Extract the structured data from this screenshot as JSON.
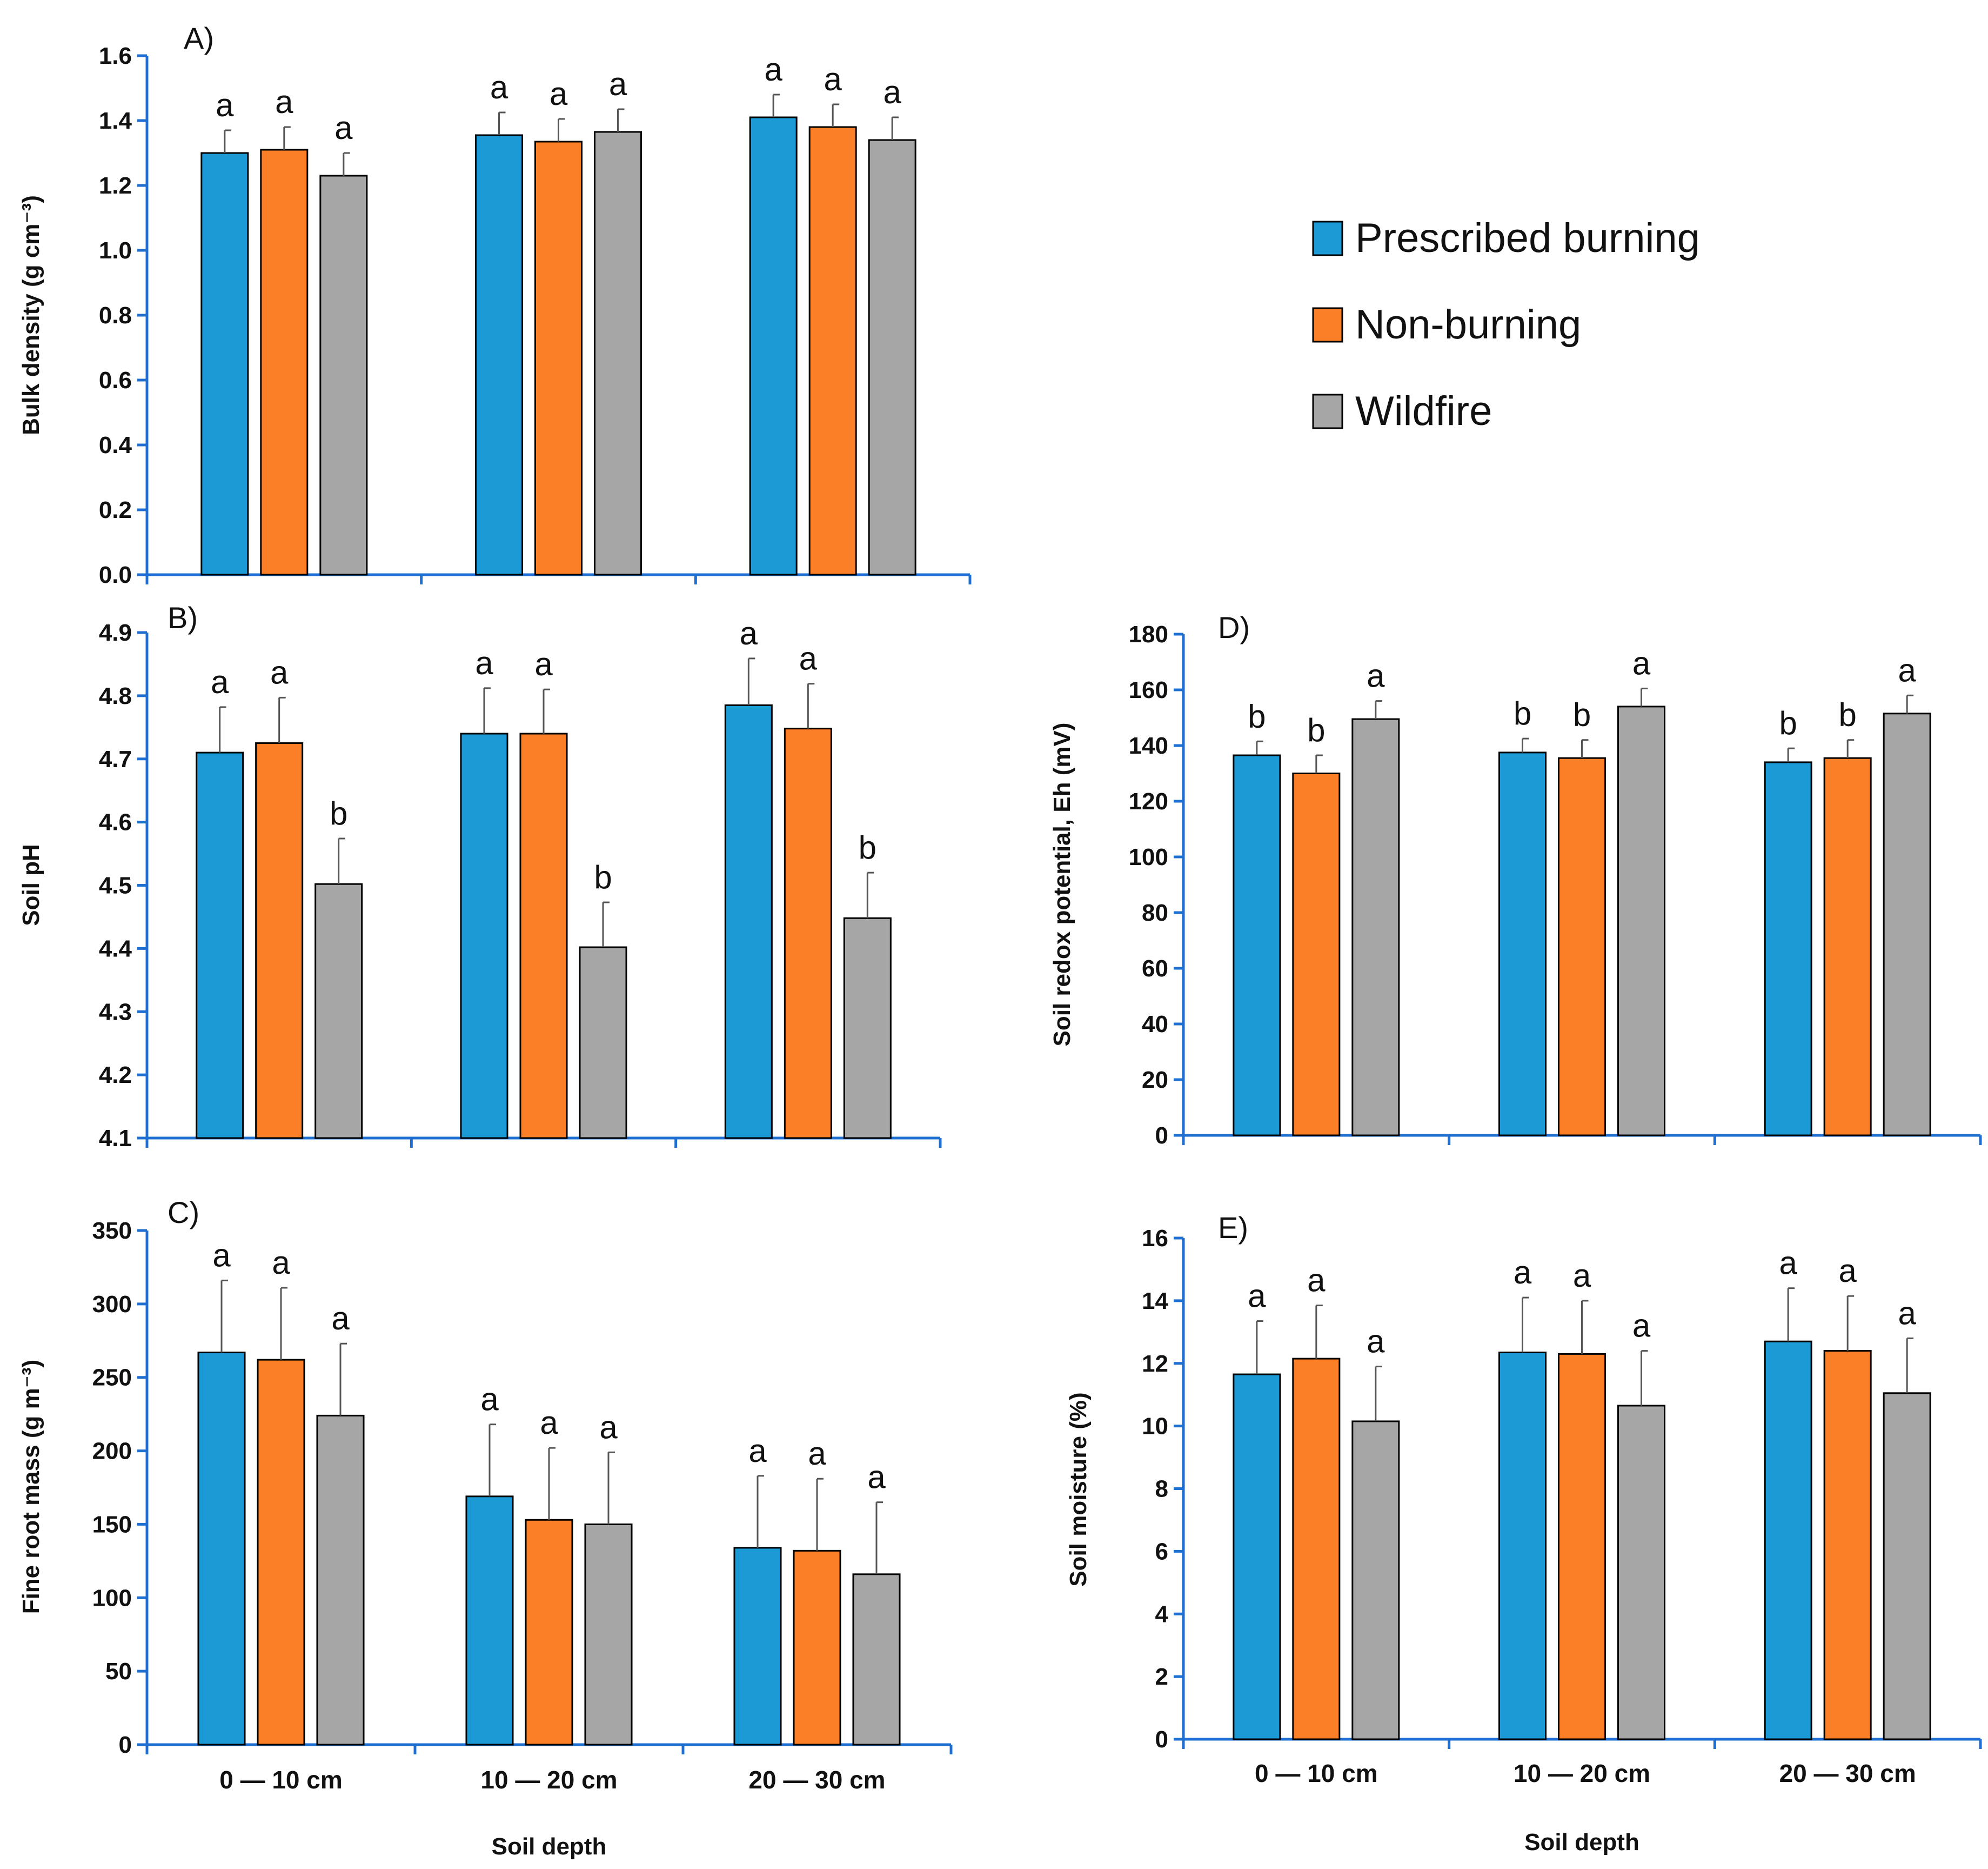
{
  "legend": {
    "items": [
      {
        "label": "Prescribed burning",
        "color": "#1b9ad6"
      },
      {
        "label": "Non-burning",
        "color": "#fb7f26"
      },
      {
        "label": "Wildfire",
        "color": "#a6a6a6"
      }
    ]
  },
  "chart_data": [
    {
      "id": "A",
      "title": "A)",
      "type": "bar",
      "ylabel": "Bulk density (g cm⁻³)",
      "xlabel": "",
      "categories": [
        "0 — 10 cm",
        "10 — 20 cm",
        "20 — 30 cm"
      ],
      "show_category_labels": false,
      "ylim": [
        0,
        1.6
      ],
      "yticks": [
        "0.0",
        "0.2",
        "0.4",
        "0.6",
        "0.8",
        "1.0",
        "1.2",
        "1.4",
        "1.6"
      ],
      "series": [
        {
          "name": "Prescribed burning",
          "values": [
            1.3,
            1.355,
            1.41
          ],
          "errors": [
            0.07,
            0.07,
            0.07
          ],
          "letters": [
            "a",
            "a",
            "a"
          ]
        },
        {
          "name": "Non-burning",
          "values": [
            1.31,
            1.335,
            1.38
          ],
          "errors": [
            0.07,
            0.07,
            0.07
          ],
          "letters": [
            "a",
            "a",
            "a"
          ]
        },
        {
          "name": "Wildfire",
          "values": [
            1.23,
            1.365,
            1.34
          ],
          "errors": [
            0.07,
            0.07,
            0.07
          ],
          "letters": [
            "a",
            "a",
            "a"
          ]
        }
      ]
    },
    {
      "id": "B",
      "title": "B)",
      "type": "bar",
      "ylabel": "Soil pH",
      "xlabel": "",
      "categories": [
        "0 — 10 cm",
        "10 — 20 cm",
        "20 — 30 cm"
      ],
      "show_category_labels": false,
      "ylim": [
        4.1,
        4.9
      ],
      "yticks": [
        "4.1",
        "4.2",
        "4.3",
        "4.4",
        "4.5",
        "4.6",
        "4.7",
        "4.8",
        "4.9"
      ],
      "series": [
        {
          "name": "Prescribed burning",
          "values": [
            4.71,
            4.74,
            4.785
          ],
          "errors": [
            0.072,
            0.072,
            0.074
          ],
          "letters": [
            "a",
            "a",
            "a"
          ]
        },
        {
          "name": "Non-burning",
          "values": [
            4.725,
            4.74,
            4.748
          ],
          "errors": [
            0.072,
            0.07,
            0.071
          ],
          "letters": [
            "a",
            "a",
            "a"
          ]
        },
        {
          "name": "Wildfire",
          "values": [
            4.502,
            4.402,
            4.448
          ],
          "errors": [
            0.072,
            0.071,
            0.072
          ],
          "letters": [
            "b",
            "b",
            "b"
          ]
        }
      ]
    },
    {
      "id": "C",
      "title": "C)",
      "type": "bar",
      "ylabel": "Fine root mass (g m⁻³)",
      "xlabel": "Soil depth",
      "categories": [
        "0 — 10 cm",
        "10 — 20 cm",
        "20 — 30 cm"
      ],
      "show_category_labels": true,
      "ylim": [
        0,
        350
      ],
      "yticks": [
        "0",
        "50",
        "100",
        "150",
        "200",
        "250",
        "300",
        "350"
      ],
      "series": [
        {
          "name": "Prescribed burning",
          "values": [
            267,
            169,
            134
          ],
          "errors": [
            49,
            49,
            49
          ],
          "letters": [
            "a",
            "a",
            "a"
          ]
        },
        {
          "name": "Non-burning",
          "values": [
            262,
            153,
            132
          ],
          "errors": [
            49,
            49,
            49
          ],
          "letters": [
            "a",
            "a",
            "a"
          ]
        },
        {
          "name": "Wildfire",
          "values": [
            224,
            150,
            116
          ],
          "errors": [
            49,
            49,
            49
          ],
          "letters": [
            "a",
            "a",
            "a"
          ]
        }
      ]
    },
    {
      "id": "D",
      "title": "D)",
      "type": "bar",
      "ylabel": "Soil redox potential, Eh (mV)",
      "xlabel": "",
      "categories": [
        "0 — 10 cm",
        "10 — 20 cm",
        "20 — 30 cm"
      ],
      "show_category_labels": false,
      "ylim": [
        0,
        180
      ],
      "yticks": [
        "0",
        "20",
        "40",
        "60",
        "80",
        "100",
        "120",
        "140",
        "160",
        "180"
      ],
      "series": [
        {
          "name": "Prescribed burning",
          "values": [
            136.5,
            137.5,
            134
          ],
          "errors": [
            5,
            5,
            5
          ],
          "letters": [
            "b",
            "b",
            "b"
          ]
        },
        {
          "name": "Non-burning",
          "values": [
            130,
            135.5,
            135.5
          ],
          "errors": [
            6.5,
            6.5,
            6.5
          ],
          "letters": [
            "b",
            "b",
            "b"
          ]
        },
        {
          "name": "Wildfire",
          "values": [
            149.5,
            154,
            151.5
          ],
          "errors": [
            6.5,
            6.5,
            6.5
          ],
          "letters": [
            "a",
            "a",
            "a"
          ]
        }
      ]
    },
    {
      "id": "E",
      "title": "E)",
      "type": "bar",
      "ylabel": "Soil moisture (%)",
      "xlabel": "Soil depth",
      "categories": [
        "0 — 10 cm",
        "10 — 20 cm",
        "20 — 30 cm"
      ],
      "show_category_labels": true,
      "ylim": [
        0,
        16
      ],
      "yticks": [
        "0",
        "2",
        "4",
        "6",
        "8",
        "10",
        "12",
        "14",
        "16"
      ],
      "series": [
        {
          "name": "Prescribed burning",
          "values": [
            11.65,
            12.35,
            12.7
          ],
          "errors": [
            1.7,
            1.75,
            1.7
          ],
          "letters": [
            "a",
            "a",
            "a"
          ]
        },
        {
          "name": "Non-burning",
          "values": [
            12.15,
            12.3,
            12.4
          ],
          "errors": [
            1.7,
            1.7,
            1.75
          ],
          "letters": [
            "a",
            "a",
            "a"
          ]
        },
        {
          "name": "Wildfire",
          "values": [
            10.15,
            10.65,
            11.05
          ],
          "errors": [
            1.75,
            1.75,
            1.75
          ],
          "letters": [
            "a",
            "a",
            "a"
          ]
        }
      ]
    }
  ]
}
